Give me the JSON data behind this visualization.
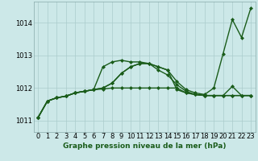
{
  "background_color": "#cce8e8",
  "grid_color": "#aacccc",
  "line_color": "#1a5c1a",
  "title": "Graphe pression niveau de la mer (hPa)",
  "ylim": [
    1010.65,
    1014.65
  ],
  "xlim": [
    -0.5,
    23.5
  ],
  "yticks": [
    1011,
    1012,
    1013,
    1014
  ],
  "xticks": [
    0,
    1,
    2,
    3,
    4,
    5,
    6,
    7,
    8,
    9,
    10,
    11,
    12,
    13,
    14,
    15,
    16,
    17,
    18,
    19,
    20,
    21,
    22,
    23
  ],
  "series": [
    [
      1011.1,
      1011.6,
      1011.7,
      1011.75,
      1011.85,
      1011.9,
      1011.95,
      1012.0,
      1012.15,
      1012.45,
      1012.65,
      1012.75,
      1012.75,
      1012.65,
      1012.55,
      1012.2,
      1011.95,
      1011.85,
      1011.8,
      1012.0,
      1013.05,
      1014.1,
      1013.55,
      1014.45
    ],
    [
      1011.1,
      1011.6,
      1011.7,
      1011.75,
      1011.85,
      1011.9,
      1011.95,
      1012.65,
      1012.8,
      1012.85,
      1012.8,
      1012.8,
      1012.75,
      1012.55,
      1012.4,
      1012.1,
      1011.9,
      1011.8,
      1011.77,
      1011.77,
      1011.77,
      1011.77,
      1011.77,
      1011.77
    ],
    [
      1011.1,
      1011.6,
      1011.7,
      1011.75,
      1011.85,
      1011.9,
      1011.95,
      1012.0,
      1012.15,
      1012.45,
      1012.65,
      1012.75,
      1012.75,
      1012.65,
      1012.55,
      1011.95,
      1011.85,
      1011.8,
      1011.77,
      1011.77,
      1011.77,
      1012.05,
      1011.77,
      1011.77
    ],
    [
      1011.1,
      1011.6,
      1011.7,
      1011.75,
      1011.85,
      1011.9,
      1011.95,
      1011.97,
      1012.0,
      1012.0,
      1012.0,
      1012.0,
      1012.0,
      1012.0,
      1012.0,
      1012.0,
      1011.85,
      1011.8,
      1011.77,
      1011.77,
      1011.77,
      1011.77,
      1011.77,
      1011.77
    ]
  ],
  "marker": "D",
  "markersize": 2.0,
  "linewidth": 1.0,
  "tick_fontsize": 6.0,
  "title_fontsize": 6.5
}
